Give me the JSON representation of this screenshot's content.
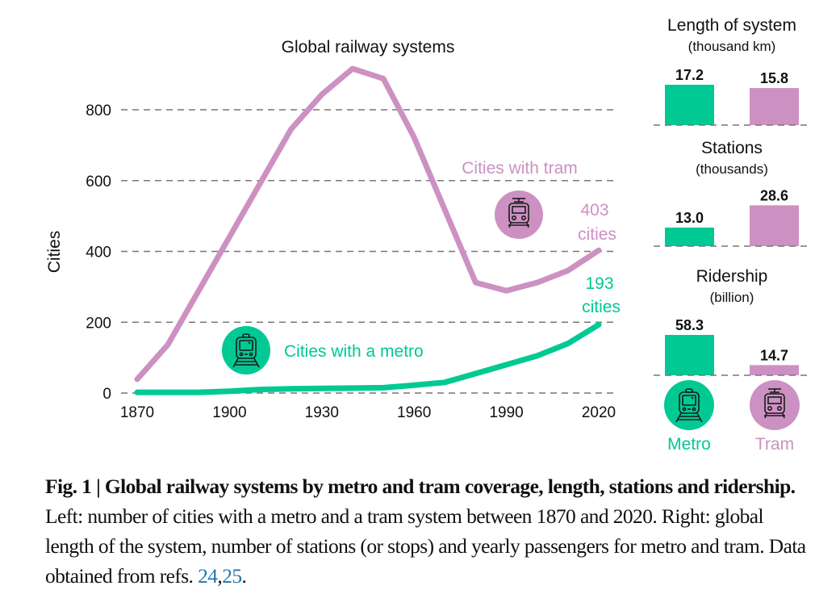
{
  "colors": {
    "metro": "#00c994",
    "tram": "#cc91c2",
    "grid": "#777777",
    "text": "#111111",
    "ref_link": "#1f77b4"
  },
  "chart_data": [
    {
      "type": "line",
      "title": "Global railway systems",
      "xlabel": "",
      "ylabel": "Cities",
      "xlim": [
        1870,
        2020
      ],
      "ylim": [
        0,
        900
      ],
      "x_ticks": [
        1870,
        1900,
        1930,
        1960,
        1990,
        2020
      ],
      "y_ticks": [
        0,
        200,
        400,
        600,
        800
      ],
      "grid": "horizontal-dashed",
      "series": [
        {
          "name": "Cities with tram",
          "color": "#cc91c2",
          "x": [
            1870,
            1880,
            1920,
            1930,
            1940,
            1950,
            1960,
            1980,
            1990,
            2000,
            2010,
            2020
          ],
          "values": [
            39,
            137,
            745,
            843,
            916,
            888,
            722,
            312,
            289,
            312,
            346,
            403
          ],
          "end_label": [
            "403",
            "cities"
          ]
        },
        {
          "name": "Cities with a metro",
          "color": "#00c994",
          "x": [
            1870,
            1880,
            1890,
            1900,
            1910,
            1920,
            1930,
            1940,
            1950,
            1960,
            1970,
            1980,
            1990,
            2000,
            2010,
            2020
          ],
          "values": [
            2,
            2,
            2,
            5,
            10,
            12,
            13,
            14,
            15,
            22,
            30,
            55,
            80,
            105,
            140,
            193
          ],
          "end_label": [
            "193",
            "cities"
          ]
        }
      ]
    },
    {
      "type": "bar",
      "panels": [
        {
          "title": "Length of system",
          "subtitle": "(thousand km)",
          "categories": [
            "Metro",
            "Tram"
          ],
          "values": [
            17.2,
            15.8
          ],
          "labels": [
            "17.2",
            "15.8"
          ]
        },
        {
          "title": "Stations",
          "subtitle": "(thousands)",
          "categories": [
            "Metro",
            "Tram"
          ],
          "values": [
            13.0,
            28.6
          ],
          "labels": [
            "13.0",
            "28.6"
          ]
        },
        {
          "title": "Ridership",
          "subtitle": "(billion)",
          "categories": [
            "Metro",
            "Tram"
          ],
          "values": [
            58.3,
            14.7
          ],
          "labels": [
            "58.3",
            "14.7"
          ]
        }
      ],
      "legend": [
        {
          "label": "Metro",
          "icon": "metro-train-icon",
          "color": "#00c994"
        },
        {
          "label": "Tram",
          "icon": "tram-icon",
          "color": "#cc91c2"
        }
      ]
    }
  ],
  "caption": {
    "bold": "Fig. 1 | Global railway systems by metro and tram coverage, length, stations and ridership.",
    "text": " Left: number of cities with a metro and a tram system between 1870 and 2020. Right: global length of the system, number of stations (or stops) and yearly passengers for metro and tram. Data obtained from refs. ",
    "refs": [
      "24",
      "25"
    ],
    "end": "."
  }
}
